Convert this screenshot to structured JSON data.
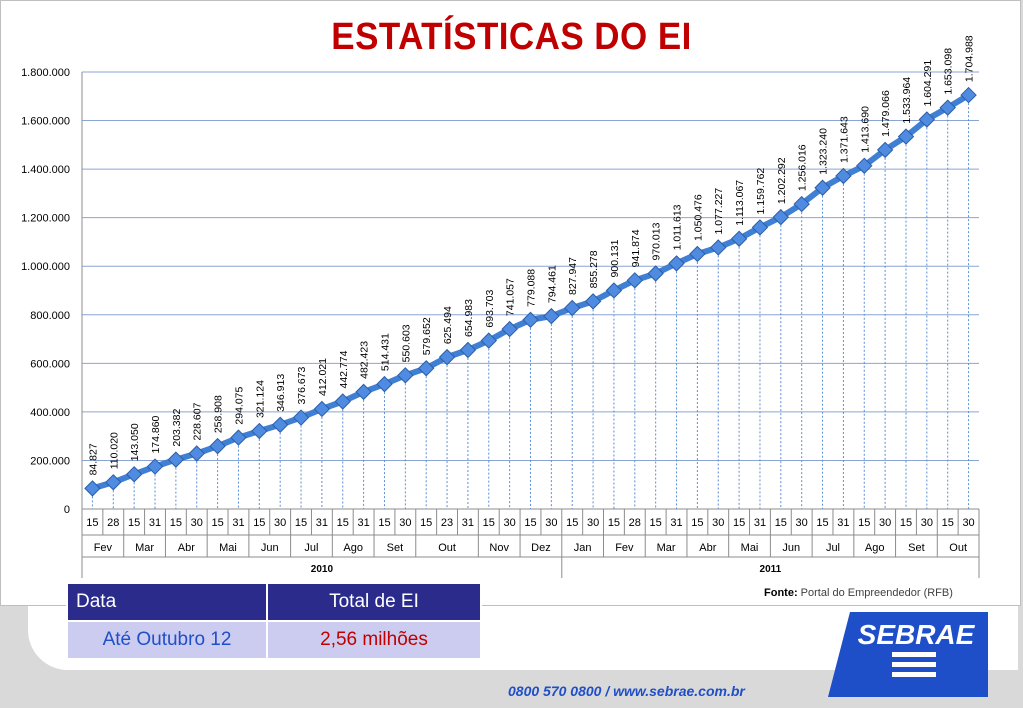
{
  "title": "ESTATÍSTICAS DO EI",
  "chart_data": {
    "type": "line",
    "title": "ESTATÍSTICAS DO EI",
    "ylim": [
      0,
      1800000
    ],
    "yticks": [
      "0",
      "200.000",
      "400.000",
      "600.000",
      "800.000",
      "1.000.000",
      "1.200.000",
      "1.400.000",
      "1.600.000",
      "1.800.000"
    ],
    "grid": true,
    "day_labels": [
      "15",
      "28",
      "15",
      "31",
      "15",
      "30",
      "15",
      "31",
      "15",
      "30",
      "15",
      "31",
      "15",
      "31",
      "15",
      "30",
      "15",
      "23",
      "31",
      "15",
      "30",
      "15",
      "30",
      "15",
      "30",
      "15",
      "28",
      "15",
      "31",
      "15",
      "30",
      "15",
      "31",
      "15",
      "30",
      "15",
      "31",
      "15",
      "30",
      "15",
      "30",
      "15",
      "30"
    ],
    "months": [
      {
        "label": "Fev",
        "count": 2
      },
      {
        "label": "Mar",
        "count": 2
      },
      {
        "label": "Abr",
        "count": 2
      },
      {
        "label": "Mai",
        "count": 2
      },
      {
        "label": "Jun",
        "count": 2
      },
      {
        "label": "Jul",
        "count": 2
      },
      {
        "label": "Ago",
        "count": 2
      },
      {
        "label": "Set",
        "count": 2
      },
      {
        "label": "Out",
        "count": 3
      },
      {
        "label": "Nov",
        "count": 2
      },
      {
        "label": "Dez",
        "count": 2
      },
      {
        "label": "Jan",
        "count": 2
      },
      {
        "label": "Fev",
        "count": 2
      },
      {
        "label": "Mar",
        "count": 2
      },
      {
        "label": "Abr",
        "count": 2
      },
      {
        "label": "Mai",
        "count": 2
      },
      {
        "label": "Jun",
        "count": 2
      },
      {
        "label": "Jul",
        "count": 2
      },
      {
        "label": "Ago",
        "count": 2
      },
      {
        "label": "Set",
        "count": 2
      },
      {
        "label": "Out",
        "count": 2
      }
    ],
    "years": [
      {
        "label": "2010",
        "count": 23
      },
      {
        "label": "2011",
        "count": 20
      }
    ],
    "values": [
      84827,
      110020,
      143050,
      174860,
      203382,
      228607,
      258908,
      294075,
      321124,
      346913,
      376673,
      412021,
      442774,
      482423,
      514431,
      550603,
      579652,
      625494,
      654983,
      693703,
      741057,
      779088,
      794461,
      827947,
      855278,
      900131,
      941874,
      970013,
      1011613,
      1050476,
      1077227,
      1113067,
      1159762,
      1202292,
      1256016,
      1323240,
      1371643,
      1413690,
      1479066,
      1533964,
      1604291,
      1653098,
      1704988
    ],
    "value_labels": [
      "84.827",
      "110.020",
      "143.050",
      "174.860",
      "203.382",
      "228.607",
      "258.908",
      "294.075",
      "321.124",
      "346.913",
      "376.673",
      "412.021",
      "442.774",
      "482.423",
      "514.431",
      "550.603",
      "579.652",
      "625.494",
      "654.983",
      "693.703",
      "741.057",
      "779.088",
      "794.461",
      "827.947",
      "855.278",
      "900.131",
      "941.874",
      "970.013",
      "1.011.613",
      "1.050.476",
      "1.077.227",
      "1.113.067",
      "1.159.762",
      "1.202.292",
      "1.256.016",
      "1.323.240",
      "1.371.643",
      "1.413.690",
      "1.479.066",
      "1.533.964",
      "1.604.291",
      "1.653.098",
      "1.704.988"
    ],
    "line_color": "#3f7fd4",
    "marker_color": "#4f8be0"
  },
  "source": {
    "label": "Fonte:",
    "text": "Portal do Empreendedor (RFB)"
  },
  "table": {
    "headers": [
      "Data",
      "Total de EI"
    ],
    "row": [
      "Até Outubro 12",
      "2,56 milhões"
    ]
  },
  "logo_text": "SEBRAE",
  "contact": "0800 570 0800   /   www.sebrae.com.br",
  "colors": {
    "title": "#c00000",
    "table_header": "#2b2b8c",
    "table_cell": "#ccccf0",
    "brand_blue": "#1f4fc8"
  }
}
